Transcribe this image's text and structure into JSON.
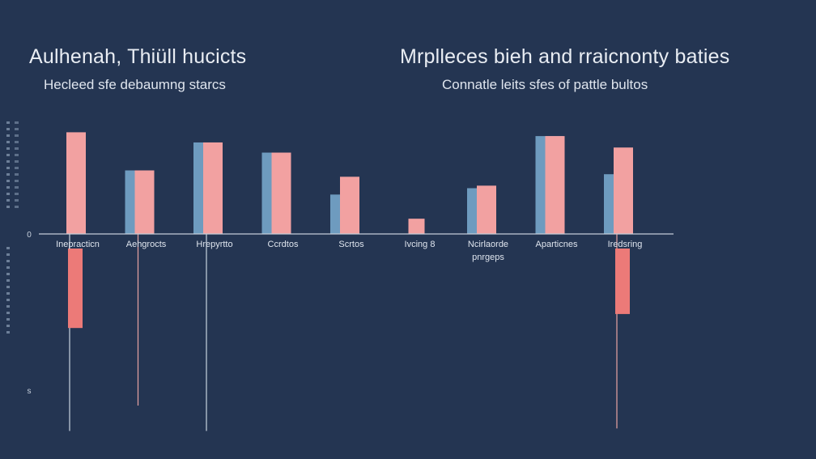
{
  "header": {
    "title_left": "Aulhenah, Thiüll hucicts",
    "subtitle_left": "Hecleed sfe debaumng starcs",
    "title_right": "Mrplleces bieh and rraicnonty baties",
    "subtitle_right": "Connatle leits sfes of pattle bultos"
  },
  "colors": {
    "background": "#243552",
    "bar_pink": "#f2a1a1",
    "bar_blue": "#6e9bbf",
    "bar_red": "#ec7a78",
    "axis": "#c3ccd8"
  },
  "chart_data": {
    "type": "bar",
    "title": "",
    "xlabel": "",
    "ylabel": "",
    "ylim": [
      -1.5,
      1.0
    ],
    "y_ticks": [
      {
        "value": 0,
        "label": "0"
      },
      {
        "value": -1.23,
        "label": "s"
      }
    ],
    "categories": [
      "Inepracticn",
      "Aehgrocts",
      "Hrepyrtto",
      "Ccrdtos",
      "Scrtos",
      "Ivcing 8",
      "Ncirlaorde pnrgeps",
      "Aparticnes",
      "Iredsring"
    ],
    "series": [
      {
        "values": [
          0,
          0.5,
          0.72,
          0.64,
          0.31,
          0,
          0.36,
          0.77,
          0.47
        ]
      },
      {
        "values": [
          0.8,
          0.5,
          0.72,
          0.64,
          0.45,
          0.12,
          0.38,
          0.77,
          0.68
        ]
      },
      {
        "values": [
          -0.74,
          0,
          0,
          0,
          0,
          0,
          0,
          0,
          -0.63
        ]
      }
    ],
    "whiskers": [
      {
        "category": 0,
        "low": -1.55
      },
      {
        "category": 1,
        "low": -1.35
      },
      {
        "category": 2,
        "low": -1.55
      },
      {
        "category": 8,
        "low": -1.53
      }
    ],
    "grid": false,
    "legend": "none"
  }
}
